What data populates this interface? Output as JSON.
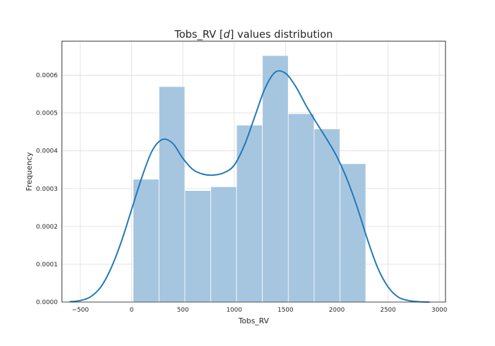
{
  "chart_data": {
    "type": "bar",
    "title_prefix": "Tobs_RV [",
    "title_italic": "d",
    "title_suffix": "] values distribution",
    "xlabel": "Tobs_RV",
    "ylabel": "Frequency",
    "xlim": [
      -680,
      3060
    ],
    "ylim": [
      0,
      0.00069
    ],
    "xticks": [
      -500,
      0,
      500,
      1000,
      1500,
      2000,
      2500,
      3000
    ],
    "xtick_labels": [
      "−500",
      "0",
      "500",
      "1000",
      "1500",
      "2000",
      "2500",
      "3000"
    ],
    "yticks": [
      0,
      0.0001,
      0.0002,
      0.0003,
      0.0004,
      0.0005,
      0.0006
    ],
    "ytick_labels": [
      "0.0000",
      "0.0001",
      "0.0002",
      "0.0003",
      "0.0004",
      "0.0005",
      "0.0006"
    ],
    "grid": true,
    "bars": {
      "edges": [
        15,
        267,
        519,
        771,
        1023,
        1275,
        1527,
        1779,
        2031,
        2283
      ],
      "values": [
        0.000325,
        0.00057,
        0.000295,
        0.000305,
        0.000468,
        0.000652,
        0.000498,
        0.000458,
        0.000366
      ],
      "color": "#a6c6e0"
    },
    "kde": {
      "color": "#1f77b4",
      "x": [
        -600,
        -500,
        -400,
        -300,
        -200,
        -100,
        0,
        100,
        200,
        300,
        400,
        500,
        600,
        700,
        800,
        900,
        1000,
        1100,
        1200,
        1300,
        1400,
        1500,
        1600,
        1700,
        1800,
        1900,
        2000,
        2100,
        2200,
        2300,
        2400,
        2500,
        2600,
        2700,
        2800,
        2900
      ],
      "y": [
        1e-06,
        4e-06,
        1.4e-05,
        4e-05,
        9e-05,
        0.00016,
        0.000245,
        0.00033,
        0.0004,
        0.00043,
        0.00042,
        0.00038,
        0.00035,
        0.000338,
        0.000336,
        0.000342,
        0.000362,
        0.000415,
        0.00049,
        0.000565,
        0.000608,
        0.000605,
        0.00057,
        0.00052,
        0.000475,
        0.000432,
        0.000385,
        0.000325,
        0.00025,
        0.000165,
        9e-05,
        4e-05,
        1.3e-05,
        4e-06,
        1e-06,
        0
      ]
    }
  }
}
